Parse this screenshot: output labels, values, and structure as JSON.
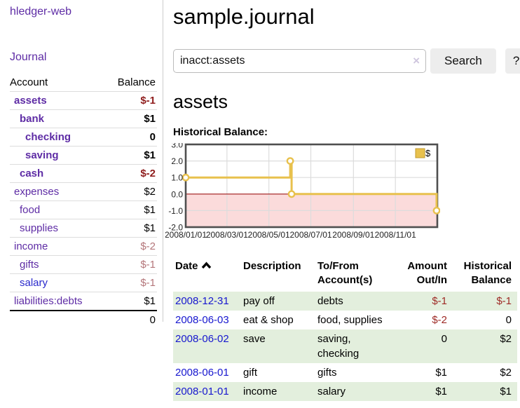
{
  "app": {
    "title": "hledger-web"
  },
  "sidebar": {
    "journal_label": "Journal",
    "accounts": {
      "headers": {
        "account": "Account",
        "balance": "Balance"
      },
      "rows": [
        {
          "account": "assets",
          "balance": "$-1"
        },
        {
          "account": "bank",
          "balance": "$1"
        },
        {
          "account": "checking",
          "balance": "0"
        },
        {
          "account": "saving",
          "balance": "$1"
        },
        {
          "account": "cash",
          "balance": "$-2"
        },
        {
          "account": "expenses",
          "balance": "$2"
        },
        {
          "account": "food",
          "balance": "$1"
        },
        {
          "account": "supplies",
          "balance": "$1"
        },
        {
          "account": "income",
          "balance": "$-2"
        },
        {
          "account": "gifts",
          "balance": "$-1"
        },
        {
          "account": "salary",
          "balance": "$-1"
        },
        {
          "account": "liabilities:debts",
          "balance": "$1"
        }
      ],
      "total": "0"
    }
  },
  "main": {
    "title": "sample.journal",
    "search": {
      "value": "inacct:assets",
      "clear_icon": "×",
      "button_label": "Search",
      "help_label": "?"
    },
    "account_heading": "assets"
  },
  "chart_data": {
    "type": "line",
    "step": true,
    "title": "Historical Balance:",
    "series": [
      {
        "name": "$",
        "points": [
          {
            "date": "2008-01-01",
            "value": 1
          },
          {
            "date": "2008-06-01",
            "value": 2
          },
          {
            "date": "2008-06-03",
            "value": 0
          },
          {
            "date": "2008-12-31",
            "value": -1
          }
        ]
      }
    ],
    "x_range": [
      "2008-01-01",
      "2009-01-01"
    ],
    "x_tick_dates": [
      "2008-01-01",
      "2008-03-01",
      "2008-05-01",
      "2008-07-01",
      "2008-09-01",
      "2008-11-01"
    ],
    "x_tick_labels": [
      "2008/01/01",
      "2008/03/01",
      "2008/05/01",
      "2008/07/01",
      "2008/09/01",
      "2008/11/01"
    ],
    "y_ticks": [
      "3.0",
      "2.0",
      "1.0",
      "0.0",
      "-1.0",
      "-2.0"
    ],
    "ylim": [
      -2,
      3
    ],
    "grid": true,
    "legend": {
      "label": "$",
      "position": "top-right"
    },
    "colors": {
      "line": "#e8c14d",
      "marker_fill": "#ffffff",
      "legend_border": "#c09a2e",
      "negative_fill": "#fbdbdb",
      "zero_line": "#9e1616",
      "grid": "#dcdcdc",
      "border": "#4f4f4f",
      "tick_text": "#222222"
    }
  },
  "register": {
    "headers": {
      "date": "Date",
      "description": "Description",
      "accounts": "To/From Account(s)",
      "amount": "Amount Out/In",
      "balance": "Historical Balance"
    },
    "rows": [
      {
        "date": "2008-12-31",
        "description": "pay off",
        "accounts": "debts",
        "amount": "$-1",
        "balance": "$-1"
      },
      {
        "date": "2008-06-03",
        "description": "eat & shop",
        "accounts": "food, supplies",
        "amount": "$-2",
        "balance": "0"
      },
      {
        "date": "2008-06-02",
        "description": "save",
        "accounts": "saving, checking",
        "amount": "0",
        "balance": "$2"
      },
      {
        "date": "2008-06-01",
        "description": "gift",
        "accounts": "gifts",
        "amount": "$1",
        "balance": "$2"
      },
      {
        "date": "2008-01-01",
        "description": "income",
        "accounts": "salary",
        "amount": "$1",
        "balance": "$1"
      }
    ]
  }
}
